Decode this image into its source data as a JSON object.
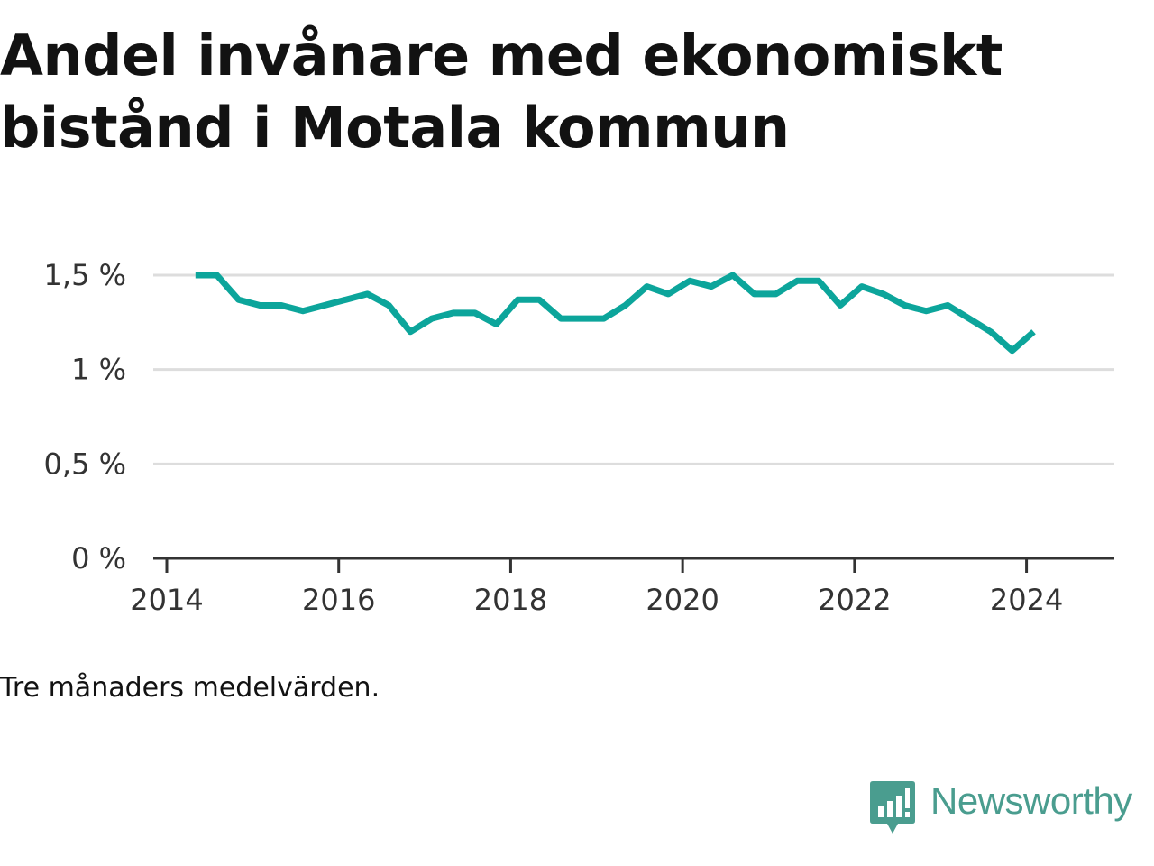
{
  "title": "Andel invånare med ekonomiskt bistånd i Motala kommun",
  "note": "Tre månaders medelvärden.",
  "brand": {
    "name": "Newsworthy",
    "icon": "bar-chart-speech-bubble-icon",
    "color": "#4a9d8f"
  },
  "chart_data": {
    "type": "line",
    "ylim": [
      0,
      1.5
    ],
    "yticks": [
      {
        "value": 0,
        "label": "0 %"
      },
      {
        "value": 0.5,
        "label": "0,5 %"
      },
      {
        "value": 1,
        "label": "1 %"
      },
      {
        "value": 1.5,
        "label": "1,5 %"
      }
    ],
    "xlim": [
      "2014-01",
      "2024-12"
    ],
    "xticks": [
      {
        "value": "2014-01",
        "label": "2014"
      },
      {
        "value": "2016-01",
        "label": "2016"
      },
      {
        "value": "2018-01",
        "label": "2018"
      },
      {
        "value": "2020-01",
        "label": "2020"
      },
      {
        "value": "2022-01",
        "label": "2022"
      },
      {
        "value": "2024-01",
        "label": "2024"
      }
    ],
    "grid": true,
    "line_color": "#0ca59b",
    "series": [
      {
        "x": [
          "2014-05",
          "2014-08",
          "2014-11",
          "2015-02",
          "2015-05",
          "2015-08",
          "2015-11",
          "2016-02",
          "2016-05",
          "2016-08",
          "2016-11",
          "2017-02",
          "2017-05",
          "2017-08",
          "2017-11",
          "2018-02",
          "2018-05",
          "2018-08",
          "2018-11",
          "2019-02",
          "2019-05",
          "2019-08",
          "2019-11",
          "2020-02",
          "2020-05",
          "2020-08",
          "2020-11",
          "2021-02",
          "2021-05",
          "2021-08",
          "2021-11",
          "2022-02",
          "2022-05",
          "2022-08",
          "2022-11",
          "2023-02",
          "2023-05",
          "2023-08",
          "2023-11",
          "2024-02"
        ],
        "y": [
          1.5,
          1.5,
          1.37,
          1.34,
          1.34,
          1.31,
          1.34,
          1.37,
          1.4,
          1.34,
          1.2,
          1.27,
          1.3,
          1.3,
          1.24,
          1.37,
          1.37,
          1.27,
          1.27,
          1.27,
          1.34,
          1.44,
          1.4,
          1.47,
          1.44,
          1.5,
          1.4,
          1.4,
          1.47,
          1.47,
          1.34,
          1.44,
          1.4,
          1.34,
          1.31,
          1.34,
          1.27,
          1.2,
          1.1,
          1.2
        ]
      }
    ]
  }
}
